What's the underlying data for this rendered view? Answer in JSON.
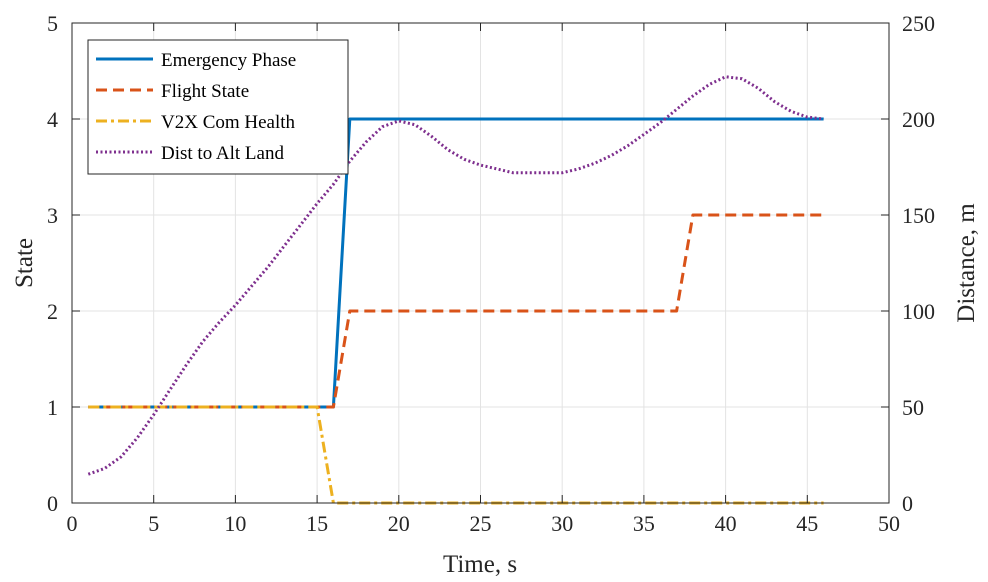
{
  "chart_data": {
    "type": "line",
    "xlabel": "Time, s",
    "ylabel_left": "State",
    "ylabel_right": "Distance, m",
    "xlim": [
      0,
      50
    ],
    "ylim_left": [
      0,
      5
    ],
    "ylim_right": [
      0,
      250
    ],
    "x_ticks": [
      "0",
      "5",
      "10",
      "15",
      "20",
      "25",
      "30",
      "35",
      "40",
      "45",
      "50"
    ],
    "y_left_ticks": [
      "0",
      "1",
      "2",
      "3",
      "4",
      "5"
    ],
    "y_right_ticks": [
      "0",
      "50",
      "100",
      "150",
      "200",
      "250"
    ],
    "grid": true,
    "legend_position": "top-left",
    "series": [
      {
        "name": "Emergency Phase",
        "axis": "left",
        "color": "#0072BD",
        "style": "solid",
        "x": [
          1,
          16,
          17,
          46
        ],
        "y": [
          1,
          1,
          4,
          4
        ]
      },
      {
        "name": "Flight State",
        "axis": "left",
        "color": "#D95319",
        "style": "dashed",
        "x": [
          1,
          16,
          17,
          37,
          38,
          46
        ],
        "y": [
          1,
          1,
          2,
          2,
          3,
          3
        ]
      },
      {
        "name": "V2X Com Health",
        "axis": "left",
        "color": "#EDB120",
        "style": "dashdot",
        "x": [
          1,
          15,
          16,
          46
        ],
        "y": [
          1,
          1,
          0,
          0
        ]
      },
      {
        "name": "Dist to Alt Land",
        "axis": "right",
        "color": "#7E2F8E",
        "style": "dotted",
        "x": [
          1,
          2,
          3,
          4,
          5,
          6,
          7,
          8,
          9,
          10,
          11,
          12,
          13,
          14,
          15,
          16,
          17,
          18,
          19,
          20,
          21,
          22,
          23,
          24,
          25,
          26,
          27,
          28,
          29,
          30,
          31,
          32,
          33,
          34,
          35,
          36,
          37,
          38,
          39,
          40,
          41,
          42,
          43,
          44,
          45,
          46
        ],
        "y": [
          15,
          18,
          24,
          34,
          46,
          59,
          72,
          84,
          94,
          103,
          113,
          123,
          134,
          145,
          156,
          166,
          178,
          188,
          196,
          199,
          197,
          191,
          184,
          179,
          176,
          174,
          172,
          172,
          172,
          172,
          174,
          177,
          181,
          186,
          192,
          198,
          205,
          212,
          218,
          222,
          221,
          216,
          209,
          204,
          201,
          200
        ]
      }
    ]
  }
}
